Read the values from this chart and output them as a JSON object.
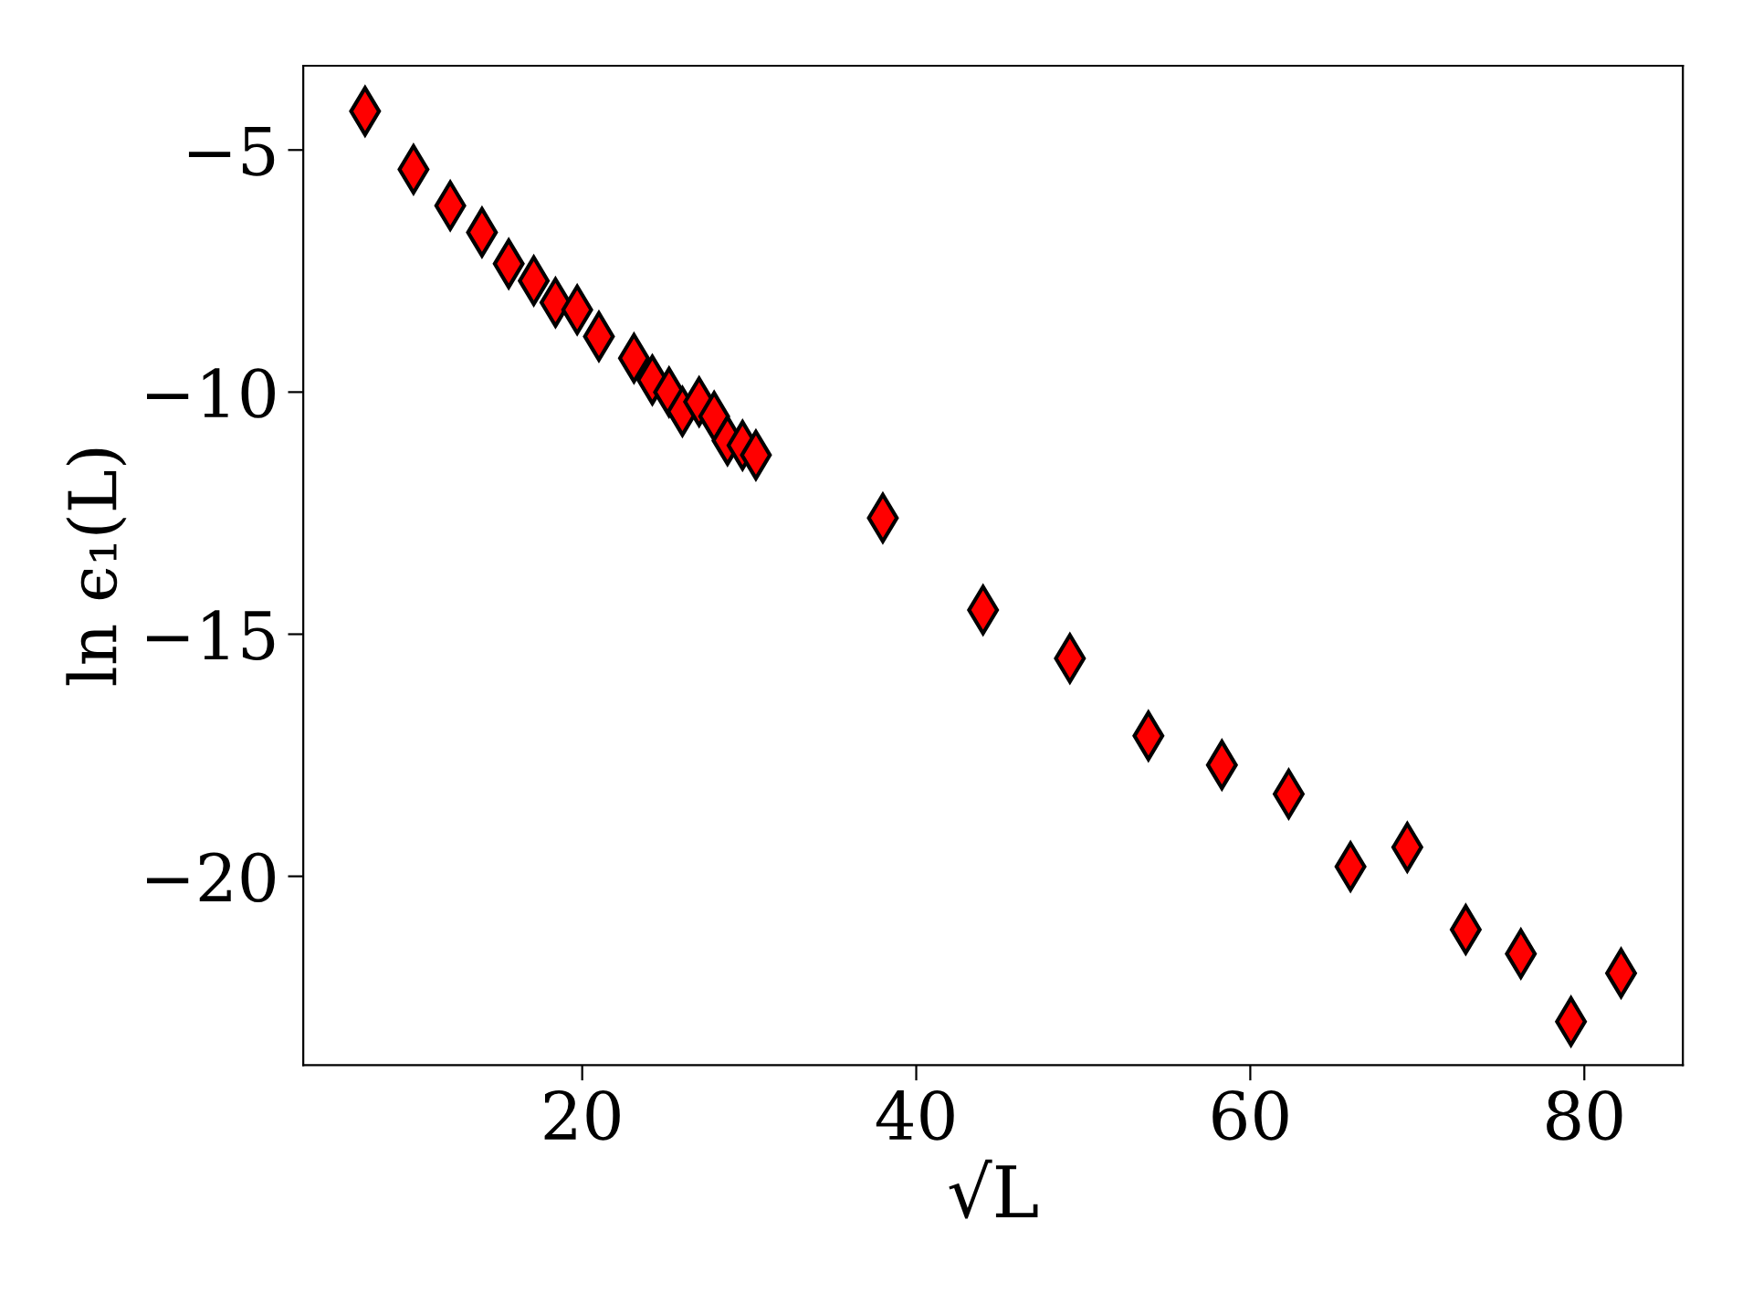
{
  "chart_data": {
    "type": "scatter",
    "xlabel": "√L",
    "ylabel": "ln ϵ₁(L)",
    "x": [
      7.0,
      9.9,
      12.1,
      14.0,
      15.6,
      17.1,
      18.4,
      19.7,
      21.0,
      23.1,
      24.2,
      25.2,
      26.0,
      27.0,
      27.9,
      28.7,
      29.6,
      30.4,
      38.0,
      44.0,
      49.2,
      53.9,
      58.3,
      62.3,
      66.0,
      69.4,
      72.9,
      76.2,
      79.2,
      82.2
    ],
    "series": [
      {
        "color": "#ff0000",
        "values": [
          -4.2,
          -5.4,
          -6.15,
          -6.7,
          -7.35,
          -7.7,
          -8.15,
          -8.3,
          -8.85,
          -9.3,
          -9.75,
          -10.0,
          -10.4,
          -10.2,
          -10.5,
          -11.0,
          -11.1,
          -11.3,
          -12.6,
          -14.5,
          -15.5,
          -17.1,
          -17.7,
          -18.3,
          -19.8,
          -19.4,
          -21.1,
          -21.6,
          -23.0,
          -22.0
        ]
      }
    ],
    "marker": "diamond",
    "grid": false,
    "legend": false,
    "xlim": [
      3.3,
      85.9
    ],
    "ylim": [
      -23.9,
      -3.26
    ],
    "xticks": [
      20,
      40,
      60,
      80
    ],
    "yticks": [
      {
        "value": -5,
        "label": "−5"
      },
      {
        "value": -10,
        "label": "−10"
      },
      {
        "value": -15,
        "label": "−15"
      },
      {
        "value": -20,
        "label": "−20"
      }
    ]
  }
}
